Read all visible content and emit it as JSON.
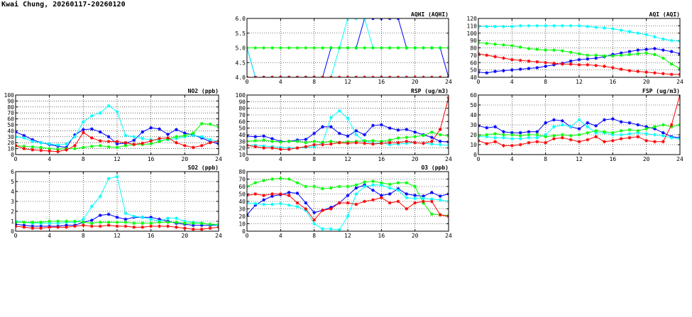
{
  "header": {
    "title": "Kwai Chung, 20260117-20260120"
  },
  "series_colors": {
    "blue": "#0000ff",
    "cyan": "#00ffff",
    "green": "#00ff00",
    "red": "#ff0000"
  },
  "chart_data": [
    {
      "id": "aqhi",
      "type": "line",
      "title": "AQHI (AQHI)",
      "xlim": [
        0,
        24
      ],
      "ylim": [
        4,
        6
      ],
      "xticks": [
        0,
        4,
        8,
        12,
        16,
        20,
        24
      ],
      "yticks": [
        4.0,
        4.5,
        5.0,
        5.5,
        6.0
      ],
      "ytick_labels": [
        "4.0",
        "4.5",
        "5.0",
        "5.5",
        "6.0"
      ],
      "grid": true,
      "series": [
        {
          "color": "blue",
          "values": [
            5,
            4,
            4,
            4,
            4,
            4,
            4,
            4,
            4,
            4,
            5,
            5,
            5,
            5,
            6,
            6,
            6,
            6,
            6,
            5,
            5,
            5,
            5,
            5,
            4
          ]
        },
        {
          "color": "cyan",
          "values": [
            5,
            4,
            4,
            4,
            4,
            4,
            4,
            4,
            4,
            4,
            4,
            5,
            6,
            6,
            6,
            5,
            5,
            5,
            5,
            5,
            5,
            5,
            5,
            5,
            5
          ]
        },
        {
          "color": "green",
          "values": [
            5,
            5,
            5,
            5,
            5,
            5,
            5,
            5,
            5,
            5,
            5,
            5,
            5,
            5,
            5,
            5,
            5,
            5,
            5,
            5,
            5,
            5,
            5,
            5,
            5
          ]
        },
        {
          "color": "red",
          "values": [
            4,
            4,
            4,
            4,
            4,
            4,
            4,
            4,
            4,
            4,
            4,
            4,
            4,
            4,
            4,
            4,
            4,
            4,
            4,
            4,
            4,
            4,
            4,
            4,
            4
          ]
        }
      ]
    },
    {
      "id": "aqi",
      "type": "line",
      "title": "AQI (AQI)",
      "xlim": [
        0,
        24
      ],
      "ylim": [
        40,
        120
      ],
      "xticks": [
        0,
        4,
        8,
        12,
        16,
        20,
        24
      ],
      "yticks": [
        40,
        50,
        60,
        70,
        80,
        90,
        100,
        110,
        120
      ],
      "ytick_labels": [
        "40",
        "50",
        "60",
        "70",
        "80",
        "90",
        "100",
        "110",
        "120"
      ],
      "grid": true,
      "series": [
        {
          "color": "blue",
          "values": [
            47,
            46,
            48,
            49,
            50,
            51,
            52,
            53,
            55,
            57,
            59,
            62,
            64,
            65,
            66,
            68,
            71,
            73,
            75,
            77,
            78,
            79,
            77,
            75,
            72
          ]
        },
        {
          "color": "cyan",
          "values": [
            109,
            109,
            109,
            109,
            109,
            110,
            110,
            110,
            110,
            110,
            110,
            110,
            110,
            109,
            108,
            107,
            106,
            104,
            102,
            100,
            98,
            95,
            92,
            90,
            89
          ]
        },
        {
          "color": "green",
          "values": [
            87,
            86,
            85,
            84,
            83,
            81,
            79,
            78,
            77,
            77,
            76,
            74,
            72,
            70,
            70,
            69,
            69,
            70,
            71,
            72,
            73,
            71,
            66,
            58,
            52
          ]
        },
        {
          "color": "red",
          "values": [
            72,
            70,
            68,
            66,
            64,
            63,
            62,
            61,
            60,
            59,
            58,
            58,
            57,
            57,
            56,
            55,
            53,
            51,
            49,
            48,
            47,
            46,
            45,
            44,
            44
          ]
        }
      ]
    },
    {
      "id": "no2",
      "type": "line",
      "title": "NO2 (ppb)",
      "xlim": [
        0,
        24
      ],
      "ylim": [
        0,
        100
      ],
      "xticks": [
        0,
        4,
        8,
        12,
        16,
        20,
        24
      ],
      "yticks": [
        0,
        10,
        20,
        30,
        40,
        50,
        60,
        70,
        80,
        90,
        100
      ],
      "ytick_labels": [
        "0",
        "10",
        "20",
        "30",
        "40",
        "50",
        "60",
        "70",
        "80",
        "90",
        "100"
      ],
      "grid": true,
      "series": [
        {
          "color": "blue",
          "values": [
            38,
            32,
            25,
            20,
            17,
            14,
            12,
            33,
            42,
            43,
            38,
            30,
            18,
            19,
            24,
            38,
            45,
            43,
            34,
            42,
            36,
            33,
            28,
            22,
            18
          ]
        },
        {
          "color": "cyan",
          "values": [
            30,
            28,
            22,
            20,
            18,
            16,
            18,
            30,
            55,
            65,
            70,
            82,
            72,
            32,
            30,
            27,
            25,
            24,
            25,
            27,
            30,
            32,
            30,
            25,
            22
          ]
        },
        {
          "color": "green",
          "values": [
            15,
            14,
            13,
            12,
            10,
            9,
            10,
            10,
            12,
            14,
            15,
            13,
            12,
            15,
            17,
            17,
            18,
            22,
            26,
            30,
            32,
            36,
            52,
            51,
            46
          ]
        },
        {
          "color": "red",
          "values": [
            15,
            10,
            8,
            7,
            6,
            5,
            8,
            15,
            37,
            28,
            23,
            22,
            22,
            20,
            17,
            19,
            23,
            27,
            28,
            20,
            15,
            12,
            15,
            20,
            23
          ]
        }
      ]
    },
    {
      "id": "rsp",
      "type": "line",
      "title": "RSP (ug/m3)",
      "xlim": [
        0,
        24
      ],
      "ylim": [
        10,
        100
      ],
      "xticks": [
        0,
        4,
        8,
        12,
        16,
        20,
        24
      ],
      "yticks": [
        10,
        20,
        30,
        40,
        50,
        60,
        70,
        80,
        90,
        100
      ],
      "ytick_labels": [
        "10",
        "20",
        "30",
        "40",
        "50",
        "60",
        "70",
        "80",
        "90",
        "100"
      ],
      "grid": true,
      "series": [
        {
          "color": "blue",
          "values": [
            38,
            37,
            38,
            34,
            30,
            30,
            32,
            33,
            42,
            52,
            52,
            42,
            38,
            46,
            40,
            54,
            55,
            50,
            47,
            48,
            44,
            40,
            36,
            30,
            29
          ]
        },
        {
          "color": "cyan",
          "values": [
            24,
            24,
            23,
            22,
            21,
            20,
            20,
            21,
            22,
            28,
            66,
            76,
            65,
            40,
            30,
            27,
            28,
            25,
            26,
            27,
            28,
            27,
            26,
            25,
            24
          ]
        },
        {
          "color": "green",
          "values": [
            30,
            31,
            32,
            30,
            29,
            30,
            30,
            28,
            30,
            28,
            30,
            28,
            29,
            30,
            31,
            31,
            30,
            32,
            35,
            36,
            37,
            39,
            44,
            40,
            38
          ]
        },
        {
          "color": "red",
          "values": [
            24,
            22,
            20,
            20,
            18,
            18,
            20,
            22,
            25,
            25,
            26,
            28,
            27,
            28,
            27,
            26,
            27,
            28,
            28,
            30,
            28,
            27,
            30,
            48,
            96
          ]
        }
      ]
    },
    {
      "id": "fsp",
      "type": "line",
      "title": "FSP (ug/m3)",
      "xlim": [
        0,
        24
      ],
      "ylim": [
        0,
        60
      ],
      "xticks": [
        0,
        4,
        8,
        12,
        16,
        20,
        24
      ],
      "yticks": [
        0,
        10,
        20,
        30,
        40,
        50,
        60
      ],
      "ytick_labels": [
        "0",
        "10",
        "20",
        "30",
        "40",
        "50",
        "60"
      ],
      "grid": true,
      "series": [
        {
          "color": "blue",
          "values": [
            29,
            27,
            28,
            23,
            22,
            22,
            23,
            23,
            32,
            35,
            34,
            28,
            26,
            32,
            29,
            35,
            36,
            33,
            32,
            30,
            28,
            26,
            22,
            18,
            17
          ]
        },
        {
          "color": "cyan",
          "values": [
            18,
            18,
            17,
            17,
            16,
            16,
            17,
            17,
            20,
            28,
            30,
            28,
            35,
            28,
            22,
            22,
            20,
            20,
            21,
            22,
            21,
            20,
            19,
            17,
            16
          ]
        },
        {
          "color": "green",
          "values": [
            19,
            20,
            21,
            20,
            20,
            19,
            20,
            20,
            18,
            19,
            20,
            19,
            20,
            22,
            24,
            23,
            22,
            24,
            25,
            24,
            26,
            28,
            30,
            28,
            30
          ]
        },
        {
          "color": "red",
          "values": [
            14,
            11,
            13,
            9,
            9,
            10,
            12,
            13,
            12,
            16,
            17,
            15,
            13,
            15,
            18,
            13,
            14,
            16,
            17,
            18,
            14,
            13,
            13,
            30,
            60
          ]
        }
      ]
    },
    {
      "id": "so2",
      "type": "line",
      "title": "SO2 (ppb)",
      "xlim": [
        0,
        24
      ],
      "ylim": [
        0,
        6
      ],
      "xticks": [
        0,
        4,
        8,
        12,
        16,
        20,
        24
      ],
      "yticks": [
        0,
        1,
        2,
        3,
        4,
        5,
        6
      ],
      "ytick_labels": [
        "0",
        "1",
        "2",
        "3",
        "4",
        "5",
        "6"
      ],
      "grid": true,
      "series": [
        {
          "color": "blue",
          "values": [
            0.7,
            0.6,
            0.5,
            0.5,
            0.5,
            0.5,
            0.6,
            0.6,
            0.9,
            1.1,
            1.6,
            1.7,
            1.4,
            1.2,
            1.4,
            1.4,
            1.4,
            1.2,
            1.0,
            0.8,
            0.7,
            0.6,
            0.6,
            0.6,
            0.6
          ]
        },
        {
          "color": "cyan",
          "values": [
            1.0,
            0.9,
            0.8,
            0.8,
            0.8,
            0.8,
            0.9,
            0.9,
            1.2,
            2.5,
            3.5,
            5.3,
            5.5,
            1.8,
            1.5,
            1.4,
            1.2,
            1.0,
            1.3,
            1.3,
            1.0,
            0.9,
            0.8,
            0.7,
            0.6
          ]
        },
        {
          "color": "green",
          "values": [
            0.9,
            0.9,
            0.9,
            0.9,
            1.0,
            1.0,
            1.0,
            1.0,
            0.9,
            0.8,
            0.9,
            0.9,
            0.9,
            0.9,
            0.8,
            0.8,
            0.8,
            0.9,
            0.9,
            0.9,
            0.8,
            0.8,
            0.8,
            0.7,
            0.7
          ]
        },
        {
          "color": "red",
          "values": [
            0.5,
            0.4,
            0.3,
            0.3,
            0.4,
            0.4,
            0.4,
            0.5,
            0.6,
            0.5,
            0.5,
            0.6,
            0.5,
            0.5,
            0.4,
            0.4,
            0.5,
            0.5,
            0.5,
            0.4,
            0.3,
            0.2,
            0.2,
            0.3,
            0.4
          ]
        }
      ]
    },
    {
      "id": "o3",
      "type": "line",
      "title": "O3 (ppb)",
      "xlim": [
        0,
        24
      ],
      "ylim": [
        0,
        80
      ],
      "xticks": [
        0,
        4,
        8,
        12,
        16,
        20,
        24
      ],
      "yticks": [
        0,
        10,
        20,
        30,
        40,
        50,
        60,
        70,
        80
      ],
      "ytick_labels": [
        "0",
        "10",
        "20",
        "30",
        "40",
        "50",
        "60",
        "70",
        "80"
      ],
      "grid": true,
      "series": [
        {
          "color": "blue",
          "values": [
            22,
            35,
            42,
            47,
            49,
            52,
            51,
            38,
            25,
            28,
            32,
            38,
            48,
            58,
            62,
            55,
            48,
            50,
            57,
            50,
            48,
            47,
            52,
            47,
            50
          ]
        },
        {
          "color": "cyan",
          "values": [
            38,
            37,
            36,
            36,
            37,
            35,
            33,
            28,
            10,
            3,
            3,
            2,
            20,
            50,
            60,
            62,
            62,
            58,
            55,
            45,
            44,
            44,
            43,
            42,
            40
          ]
        },
        {
          "color": "green",
          "values": [
            60,
            65,
            68,
            70,
            71,
            70,
            65,
            60,
            60,
            57,
            58,
            60,
            60,
            62,
            66,
            67,
            65,
            63,
            65,
            65,
            60,
            38,
            23,
            22,
            21
          ]
        },
        {
          "color": "red",
          "values": [
            48,
            50,
            48,
            50,
            50,
            48,
            38,
            30,
            15,
            28,
            30,
            38,
            38,
            36,
            40,
            42,
            45,
            38,
            40,
            30,
            38,
            40,
            40,
            22,
            20
          ]
        }
      ]
    }
  ]
}
